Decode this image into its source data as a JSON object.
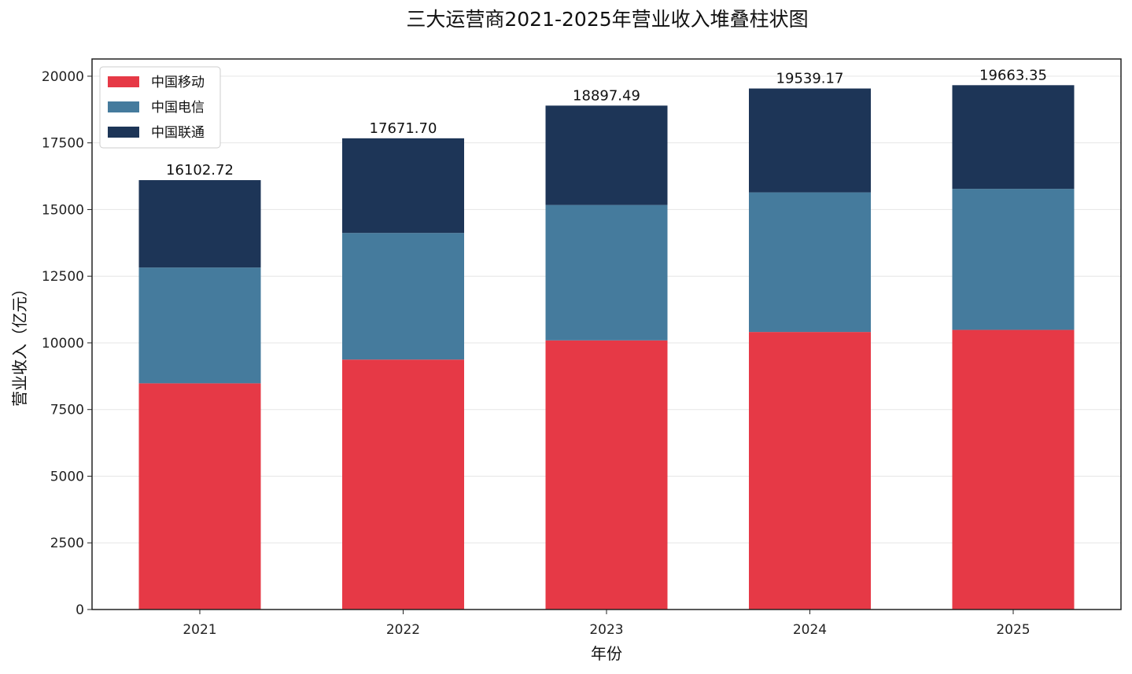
{
  "chart_data": {
    "type": "bar",
    "stacked": true,
    "title": "三大运营商2021-2025年营业收入堆叠柱状图",
    "xlabel": "年份",
    "ylabel": "营业收入（亿元）",
    "categories": [
      "2021",
      "2022",
      "2023",
      "2024",
      "2025"
    ],
    "series": [
      {
        "name": "中国移动",
        "color": "#e63946",
        "values": [
          8483,
          9373,
          10093,
          10408,
          10487
        ]
      },
      {
        "name": "中国电信",
        "color": "#457b9d",
        "values": [
          4340.72,
          4749,
          5078,
          5236,
          5288
        ]
      },
      {
        "name": "中国联通",
        "color": "#1d3557",
        "values": [
          3279,
          3549.7,
          3726.49,
          3895.17,
          3888.35
        ]
      }
    ],
    "totals_labels": [
      "16102.72",
      "17671.70",
      "18897.49",
      "19539.17",
      "19663.35"
    ],
    "ylim": [
      0,
      20646
    ],
    "yticks": [
      0,
      2500,
      5000,
      7500,
      10000,
      12500,
      15000,
      17500,
      20000
    ],
    "grid": "horizontal",
    "legend_position": "top-left"
  }
}
